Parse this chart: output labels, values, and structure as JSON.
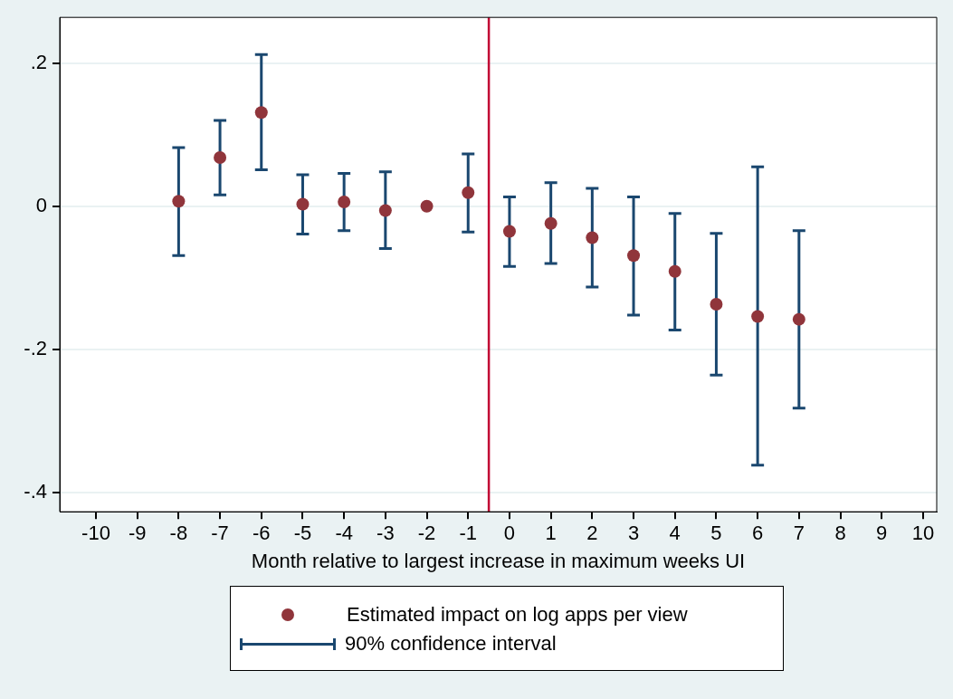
{
  "chart_data": {
    "type": "scatter",
    "xlabel": "Month relative to largest increase in maximum weeks UI",
    "x": [
      -8,
      -7,
      -6,
      -5,
      -4,
      -3,
      -2,
      -1,
      0,
      1,
      2,
      3,
      4,
      5,
      6,
      7
    ],
    "series": [
      {
        "name": "Estimated impact on log apps per view",
        "color": "#90353b",
        "values": [
          0.007,
          0.068,
          0.131,
          0.003,
          0.006,
          -0.006,
          0,
          0.019,
          -0.035,
          -0.024,
          -0.044,
          -0.069,
          -0.091,
          -0.137,
          -0.154,
          -0.158
        ],
        "errors": [
          [
            -0.069,
            0.082
          ],
          [
            0.016,
            0.12
          ],
          [
            0.051,
            0.212
          ],
          [
            -0.039,
            0.044
          ],
          [
            -0.034,
            0.046
          ],
          [
            -0.059,
            0.048
          ],
          null,
          [
            -0.036,
            0.073
          ],
          [
            -0.084,
            0.013
          ],
          [
            -0.08,
            0.033
          ],
          [
            -0.113,
            0.025
          ],
          [
            -0.152,
            0.013
          ],
          [
            -0.173,
            -0.01
          ],
          [
            -0.236,
            -0.038
          ],
          [
            -0.362,
            0.055
          ],
          [
            -0.282,
            -0.034
          ]
        ]
      }
    ],
    "annotations": [
      "90% confidence interval"
    ],
    "ref_lines": [
      {
        "axis": "x",
        "value": -0.5,
        "color": "#c10534"
      }
    ],
    "xlim": [
      -10.875,
      10.33
    ],
    "xticks": [
      -10,
      -9,
      -8,
      -7,
      -6,
      -5,
      -4,
      -3,
      -2,
      -1,
      0,
      1,
      2,
      3,
      4,
      5,
      6,
      7,
      8,
      9,
      10
    ],
    "ylim": [
      -0.427,
      0.264
    ],
    "yticks": [
      {
        "value": -0.4,
        "label": "-.4"
      },
      {
        "value": -0.2,
        "label": "-.2"
      },
      {
        "value": 0,
        "label": "0"
      },
      {
        "value": 0.2,
        "label": ".2"
      }
    ],
    "grid": "y",
    "legend": "bottom",
    "marker": "circle"
  }
}
